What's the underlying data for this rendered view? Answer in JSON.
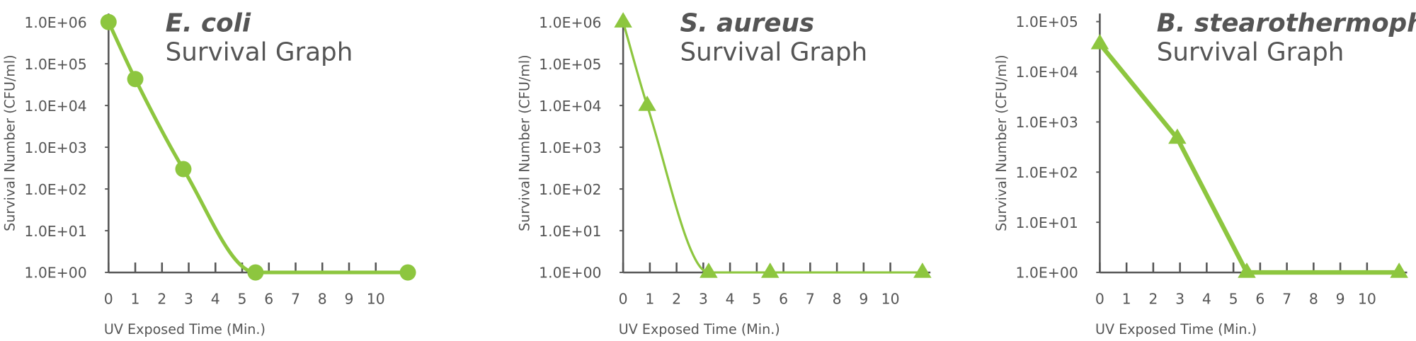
{
  "chart_data": [
    {
      "type": "line",
      "title": "E. coli",
      "subtitle": "Survival Graph",
      "x_label": "UV Exposed Time (Min.)",
      "y_label": "Survival Number (CFU/ml)",
      "x": [
        0,
        1,
        2.8,
        5.5,
        11.2
      ],
      "values": [
        1000000,
        43000,
        300,
        1,
        1
      ],
      "color": "#8dc63f",
      "marker": "circle",
      "smooth": true,
      "line_width": 4,
      "xlim": [
        0,
        11.5
      ],
      "xticks": [
        0,
        1,
        2,
        3,
        4,
        5,
        6,
        7,
        8,
        9,
        10
      ],
      "ylim": [
        1,
        1600000
      ],
      "log_scale": true,
      "yticks": [
        {
          "value": 1,
          "label": "1.0E+00"
        },
        {
          "value": 10,
          "label": "1.0E+01"
        },
        {
          "value": 100,
          "label": "1.0E+02"
        },
        {
          "value": 1000,
          "label": "1.0E+03"
        },
        {
          "value": 10000,
          "label": "1.0E+04"
        },
        {
          "value": 100000,
          "label": "1.0E+05"
        },
        {
          "value": 1000000,
          "label": "1.0E+06"
        }
      ]
    },
    {
      "type": "line",
      "title": "S. aureus",
      "subtitle": "Survival Graph",
      "x_label": "UV Exposed Time (Min.)",
      "y_label": "Survival Number (CFU/ml)",
      "x": [
        0,
        0.9,
        3.2,
        5.5,
        11.2
      ],
      "values": [
        1000000,
        10000,
        1,
        1,
        1
      ],
      "color": "#8dc63f",
      "marker": "triangle",
      "smooth": true,
      "line_width": 2.5,
      "xlim": [
        0,
        11.5
      ],
      "xticks": [
        0,
        1,
        2,
        3,
        4,
        5,
        6,
        7,
        8,
        9,
        10
      ],
      "ylim": [
        1,
        1600000
      ],
      "log_scale": true,
      "yticks": [
        {
          "value": 1,
          "label": "1.0E+00"
        },
        {
          "value": 10,
          "label": "1.0E+01"
        },
        {
          "value": 100,
          "label": "1.0E+02"
        },
        {
          "value": 1000,
          "label": "1.0E+03"
        },
        {
          "value": 10000,
          "label": "1.0E+04"
        },
        {
          "value": 100000,
          "label": "1.0E+05"
        },
        {
          "value": 1000000,
          "label": "1.0E+06"
        }
      ]
    },
    {
      "type": "line",
      "title": "B. stearothermophilus",
      "subtitle": "Survival Graph",
      "x_label": "UV Exposed Time (Min.)",
      "y_label": "Survival Number (CFU/ml)",
      "x": [
        0,
        2.9,
        5.5,
        11.2
      ],
      "values": [
        36000,
        470,
        1,
        1
      ],
      "color": "#8dc63f",
      "marker": "triangle",
      "smooth": false,
      "line_width": 5,
      "xlim": [
        0,
        11.5
      ],
      "xticks": [
        0,
        1,
        2,
        3,
        4,
        5,
        6,
        7,
        8,
        9,
        10
      ],
      "ylim": [
        1,
        145000
      ],
      "log_scale": true,
      "yticks": [
        {
          "value": 1,
          "label": "1.0E+00"
        },
        {
          "value": 10,
          "label": "1.0E+01"
        },
        {
          "value": 100,
          "label": "1.0E+02"
        },
        {
          "value": 1000,
          "label": "1.0E+03"
        },
        {
          "value": 10000,
          "label": "1.0E+04"
        },
        {
          "value": 100000,
          "label": "1.0E+05"
        }
      ]
    }
  ]
}
